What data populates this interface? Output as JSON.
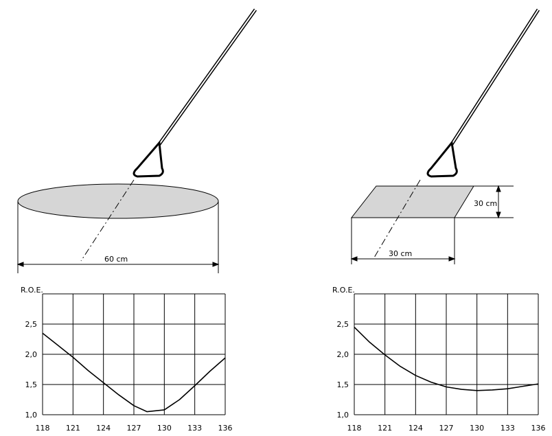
{
  "diagram": {
    "labels": [
      "60 cm",
      "30 cm",
      "30 cm"
    ]
  },
  "chart_data": [
    {
      "type": "line",
      "ylabel": "R.O.E.",
      "x": [
        118,
        119.5,
        121,
        122.5,
        124,
        125.5,
        127,
        128.3,
        130,
        131.5,
        133,
        134.5,
        136
      ],
      "series": [
        {
          "color": "#000000",
          "values": [
            2.35,
            2.15,
            1.95,
            1.73,
            1.53,
            1.33,
            1.15,
            1.05,
            1.08,
            1.25,
            1.48,
            1.72,
            1.94
          ]
        }
      ],
      "xlim": [
        118,
        136
      ],
      "xticks": [
        118,
        121,
        124,
        127,
        130,
        133,
        136
      ],
      "ylim": [
        1,
        3
      ],
      "yticks": [
        {
          "value": 1,
          "label": "1,0"
        },
        {
          "value": 1.5,
          "label": "1,5"
        },
        {
          "value": 2,
          "label": "2,0"
        },
        {
          "value": 2.5,
          "label": "2,5"
        },
        3
      ],
      "grid": true
    },
    {
      "type": "line",
      "ylabel": "R.O.E.",
      "x": [
        118,
        119.5,
        121,
        122.5,
        124,
        125.5,
        127,
        128.5,
        130,
        131.5,
        133,
        134.5,
        136
      ],
      "series": [
        {
          "color": "#000000",
          "values": [
            2.45,
            2.2,
            1.99,
            1.8,
            1.65,
            1.54,
            1.46,
            1.42,
            1.4,
            1.41,
            1.43,
            1.47,
            1.51
          ]
        }
      ],
      "xlim": [
        118,
        136
      ],
      "xticks": [
        118,
        121,
        124,
        127,
        130,
        133,
        136
      ],
      "ylim": [
        1,
        3
      ],
      "yticks": [
        {
          "value": 1,
          "label": "1,0"
        },
        {
          "value": 1.5,
          "label": "1,5"
        },
        {
          "value": 2,
          "label": "2,0"
        },
        {
          "value": 2.5,
          "label": "2,5"
        },
        3
      ],
      "grid": true
    }
  ]
}
